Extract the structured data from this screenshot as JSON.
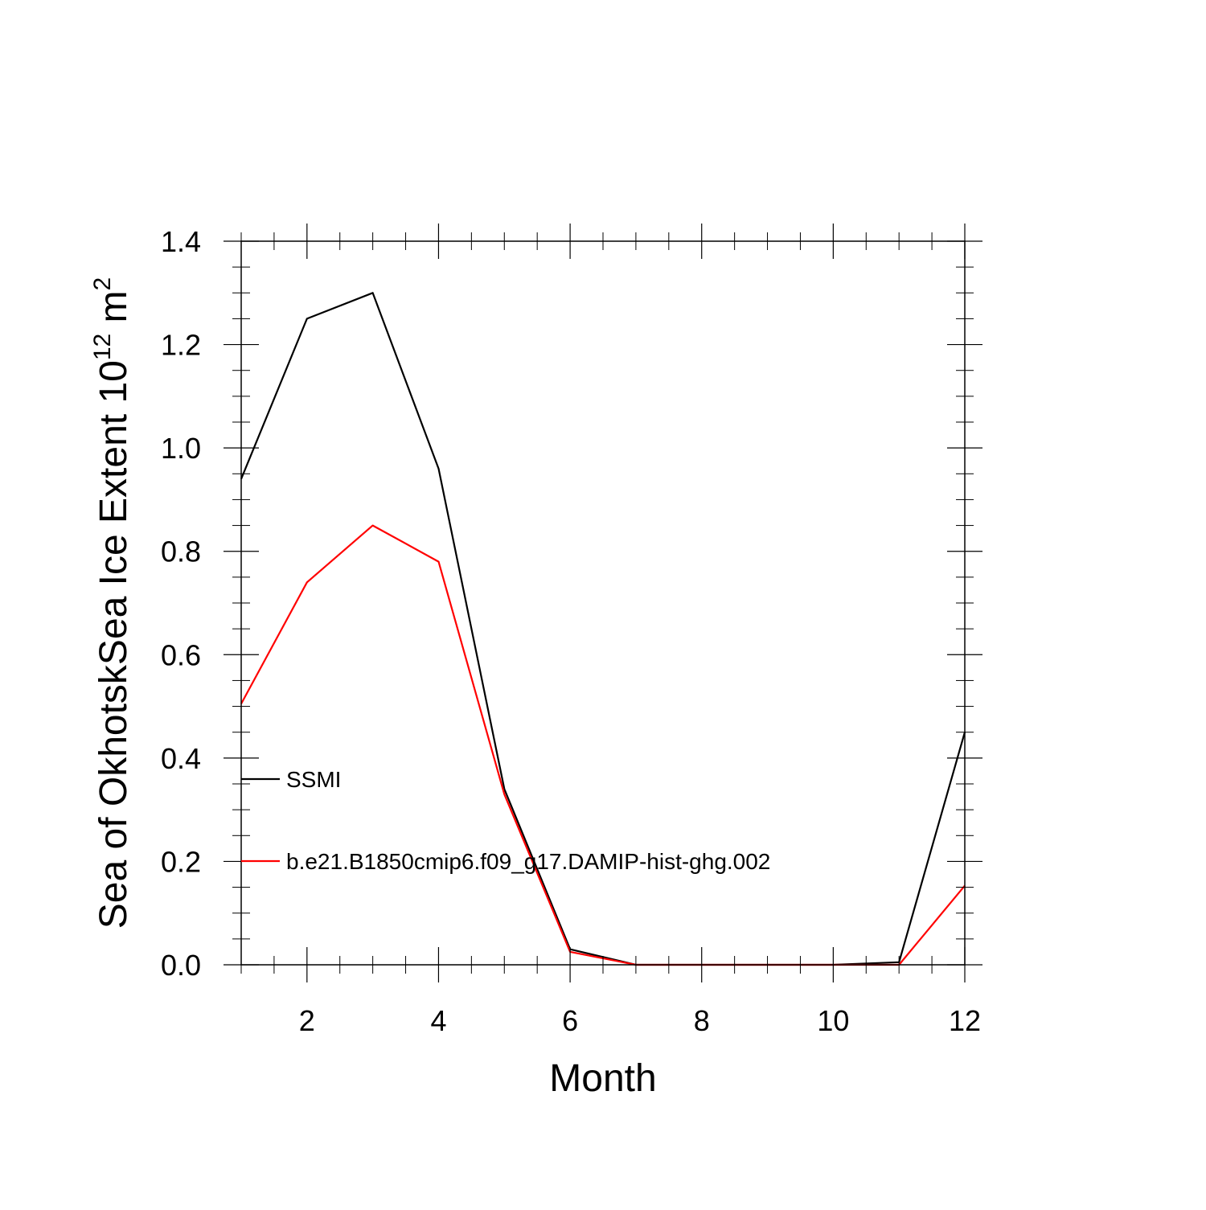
{
  "chart_data": {
    "type": "line",
    "title": "",
    "xlabel": "Month",
    "ylabel": {
      "main": "Sea of OkhotskSea Ice Extent 10",
      "superscript": "12",
      "unit": " m",
      "unit_superscript": "2"
    },
    "xlim": [
      1,
      12
    ],
    "ylim": [
      0,
      1.4
    ],
    "x_major_ticks": [
      2,
      4,
      6,
      8,
      10,
      12
    ],
    "x_tick_labels": [
      "2",
      "4",
      "6",
      "8",
      "10",
      "12"
    ],
    "y_major_ticks": [
      0,
      0.2,
      0.4,
      0.6,
      0.8,
      1.0,
      1.2,
      1.4
    ],
    "y_tick_labels": [
      "0.0",
      "0.2",
      "0.4",
      "0.6",
      "0.8",
      "1.0",
      "1.2",
      "1.4"
    ],
    "grid": false,
    "legend_position": "left-lower-inside",
    "x": [
      1,
      2,
      3,
      4,
      5,
      6,
      7,
      8,
      9,
      10,
      11,
      12
    ],
    "series": [
      {
        "name": "SSMI",
        "color": "#000000",
        "values": [
          0.94,
          1.25,
          1.3,
          0.96,
          0.34,
          0.03,
          0.0,
          0.0,
          0.0,
          0.0,
          0.005,
          0.45
        ]
      },
      {
        "name": "b.e21.B1850cmip6.f09_g17.DAMIP-hist-ghg.002",
        "color": "#ff0000",
        "values": [
          0.505,
          0.74,
          0.85,
          0.78,
          0.33,
          0.025,
          0.0,
          0.0,
          0.0,
          0.0,
          0.0,
          0.153
        ]
      }
    ]
  }
}
